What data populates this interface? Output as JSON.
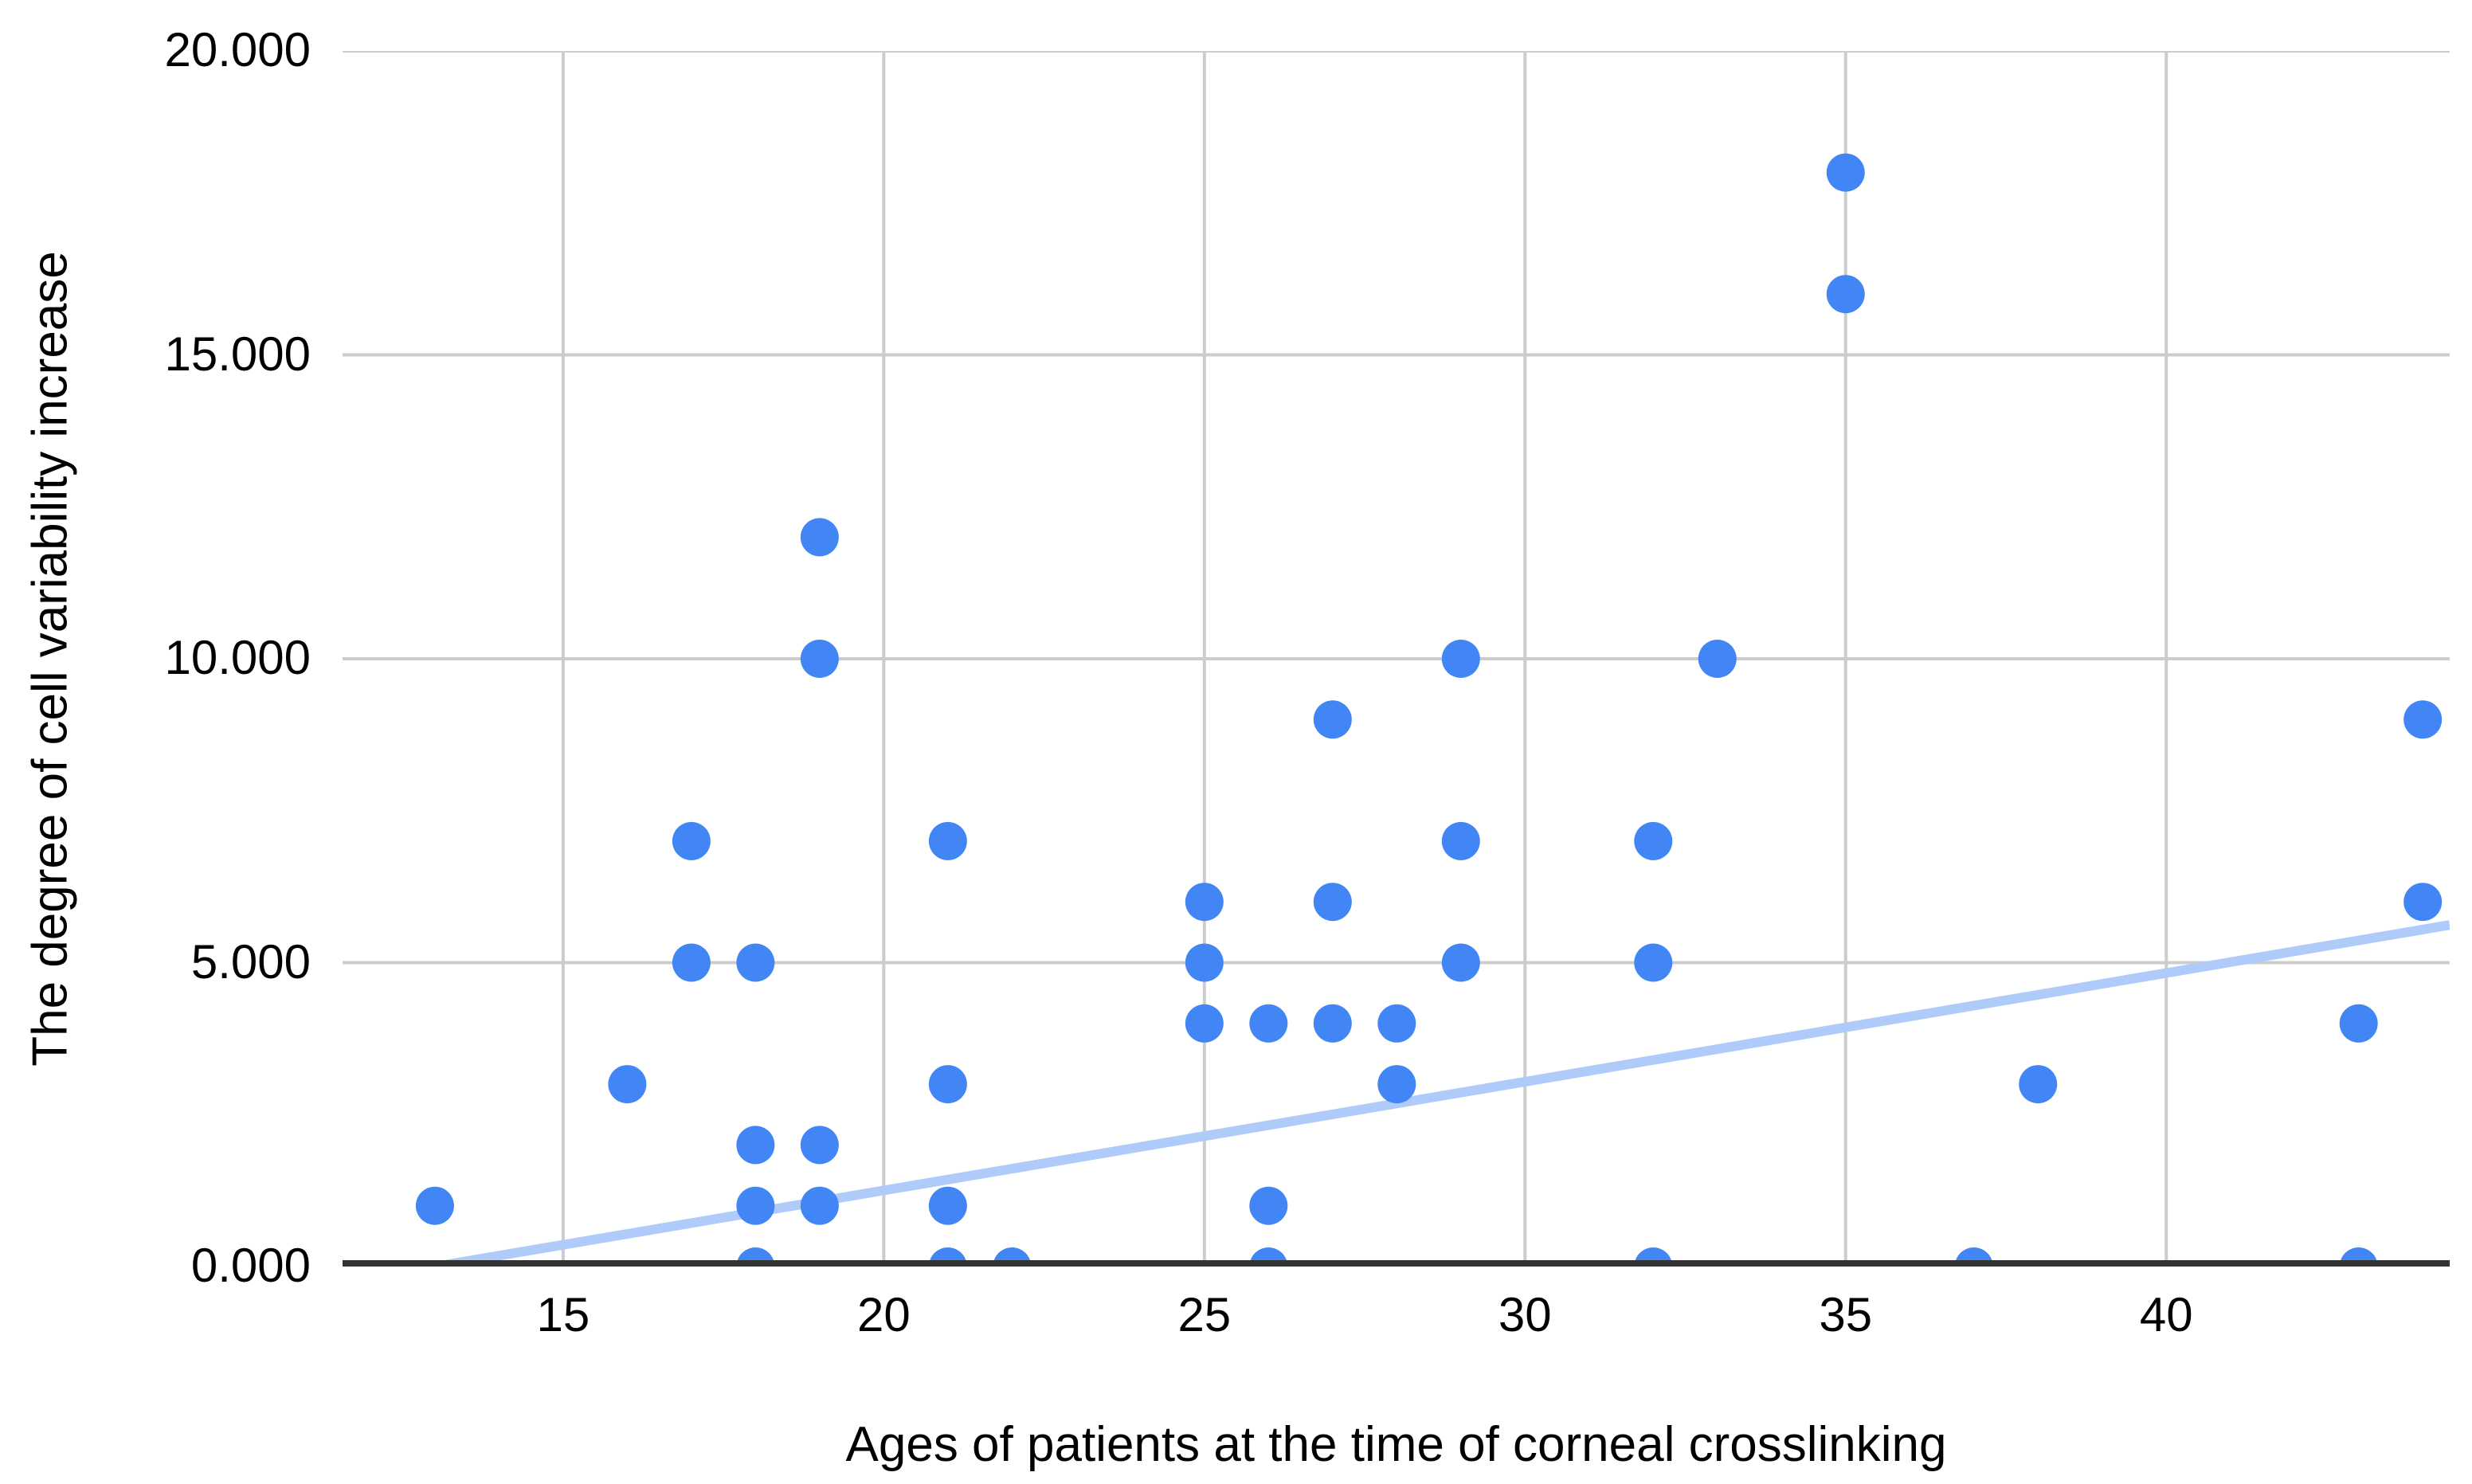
{
  "chart_data": {
    "type": "scatter",
    "title": "",
    "xlabel": "Ages of patients at the time of corneal crosslinking",
    "ylabel": "The degree of cell variability increase",
    "xlim": [
      11.56,
      44.42
    ],
    "ylim": [
      0,
      20
    ],
    "grid": true,
    "legend": "none",
    "x_ticks": [
      {
        "v": 15,
        "label": "15"
      },
      {
        "v": 20,
        "label": "20"
      },
      {
        "v": 25,
        "label": "25"
      },
      {
        "v": 30,
        "label": "30"
      },
      {
        "v": 35,
        "label": "35"
      },
      {
        "v": 40,
        "label": "40"
      }
    ],
    "y_ticks": [
      {
        "v": 0,
        "label": "0.000"
      },
      {
        "v": 5,
        "label": "5.000"
      },
      {
        "v": 10,
        "label": "10.000"
      },
      {
        "v": 15,
        "label": "15.000"
      },
      {
        "v": 20,
        "label": "20.000"
      }
    ],
    "points": [
      [
        13,
        1
      ],
      [
        16,
        3
      ],
      [
        17,
        5
      ],
      [
        17,
        7
      ],
      [
        18,
        0
      ],
      [
        18,
        1
      ],
      [
        18,
        2
      ],
      [
        18,
        5
      ],
      [
        19,
        1
      ],
      [
        19,
        2
      ],
      [
        19,
        10
      ],
      [
        19,
        12
      ],
      [
        21,
        0
      ],
      [
        21,
        1
      ],
      [
        21,
        3
      ],
      [
        21,
        7
      ],
      [
        22,
        0
      ],
      [
        25,
        4
      ],
      [
        25,
        5
      ],
      [
        25,
        6
      ],
      [
        26,
        0
      ],
      [
        26,
        1
      ],
      [
        26,
        4
      ],
      [
        27,
        4
      ],
      [
        27,
        6
      ],
      [
        27,
        9
      ],
      [
        28,
        3
      ],
      [
        28,
        4
      ],
      [
        29,
        5
      ],
      [
        29,
        7
      ],
      [
        29,
        10
      ],
      [
        32,
        0
      ],
      [
        32,
        5
      ],
      [
        32,
        7
      ],
      [
        33,
        10
      ],
      [
        35,
        16
      ],
      [
        35,
        18
      ],
      [
        37,
        0
      ],
      [
        38,
        3
      ],
      [
        43,
        0
      ],
      [
        43,
        4
      ],
      [
        44,
        6
      ],
      [
        44,
        9
      ]
    ],
    "trendline": {
      "x1": 13,
      "y1": 0,
      "x2": 44.42,
      "y2": 5.62
    },
    "colors": {
      "point": "#4285F4",
      "trendline": "#AECBFA",
      "gridline": "#CCCCCC",
      "axis": "#333333",
      "label": "#000000",
      "background": "#FFFFFF"
    }
  }
}
